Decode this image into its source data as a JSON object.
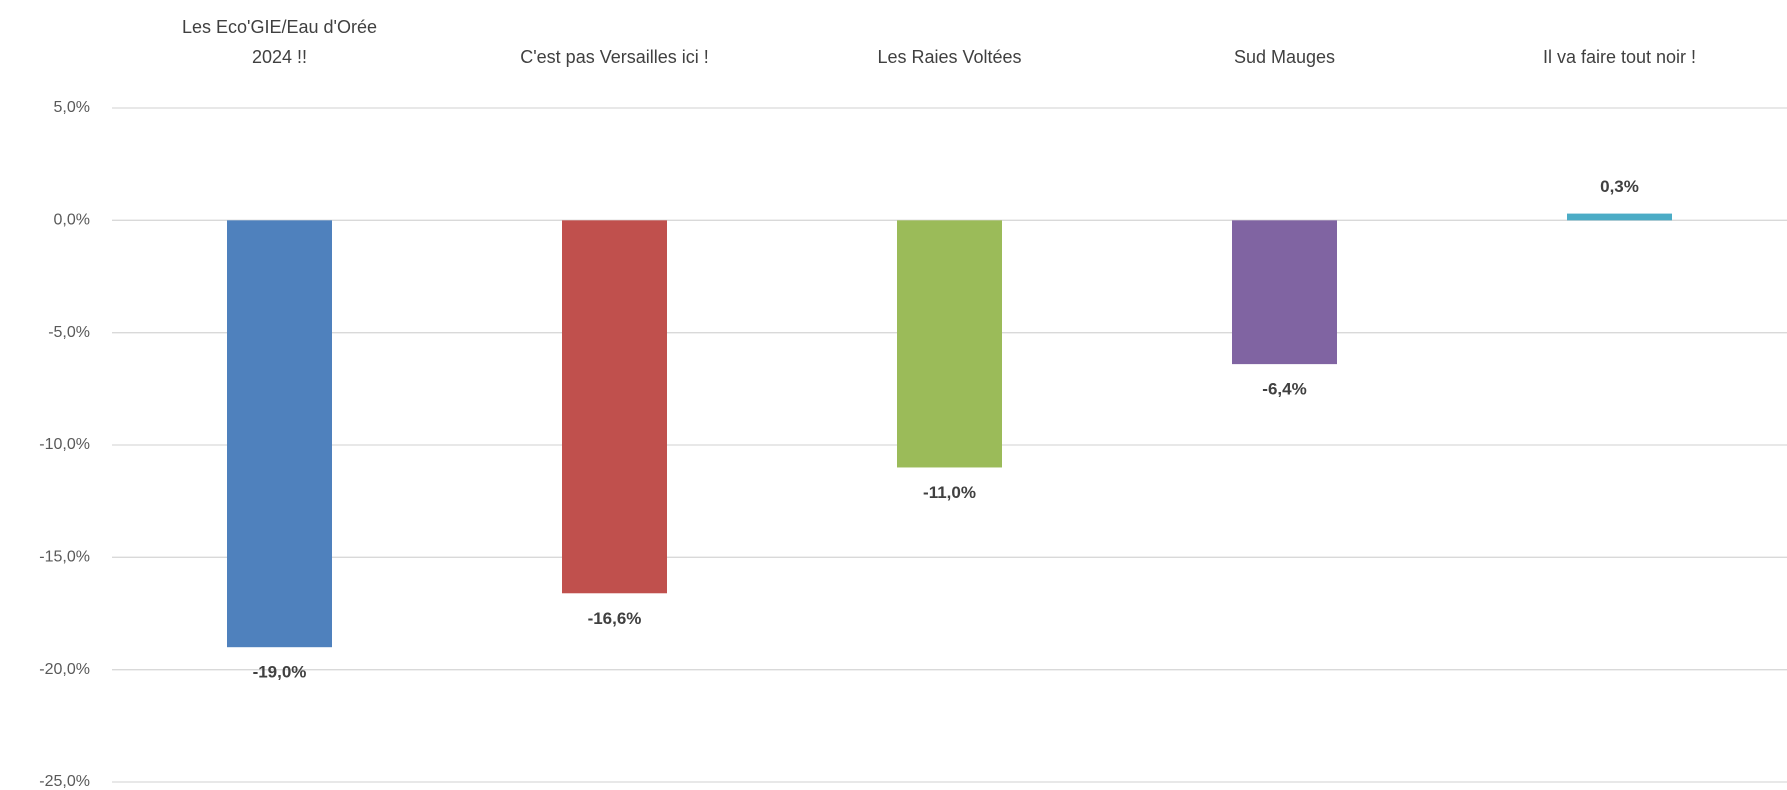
{
  "chart_data": {
    "type": "bar",
    "categories": [
      "Les Eco'GIE/Eau d'Orée\n2024 !!",
      "C'est pas Versailles ici !",
      "Les Raies Voltées",
      "Sud Mauges",
      "Il va faire tout noir  !"
    ],
    "values": [
      -19.0,
      -16.6,
      -11.0,
      -6.4,
      0.3
    ],
    "value_labels": [
      "-19,0%",
      "-16,6%",
      "-11,0%",
      "-6,4%",
      "0,3%"
    ],
    "colors": [
      "#4f81bd",
      "#c0504d",
      "#9bbb59",
      "#8064a2",
      "#4bacc6"
    ],
    "ylim": [
      -25,
      5
    ],
    "yticks": [
      {
        "value": 5,
        "label": "5,0%"
      },
      {
        "value": 0,
        "label": "0,0%"
      },
      {
        "value": -5,
        "label": "-5,0%"
      },
      {
        "value": -10,
        "label": "-10,0%"
      },
      {
        "value": -15,
        "label": "-15,0%"
      },
      {
        "value": -20,
        "label": "-20,0%"
      },
      {
        "value": -25,
        "label": "-25,0%"
      }
    ],
    "grid": true
  }
}
